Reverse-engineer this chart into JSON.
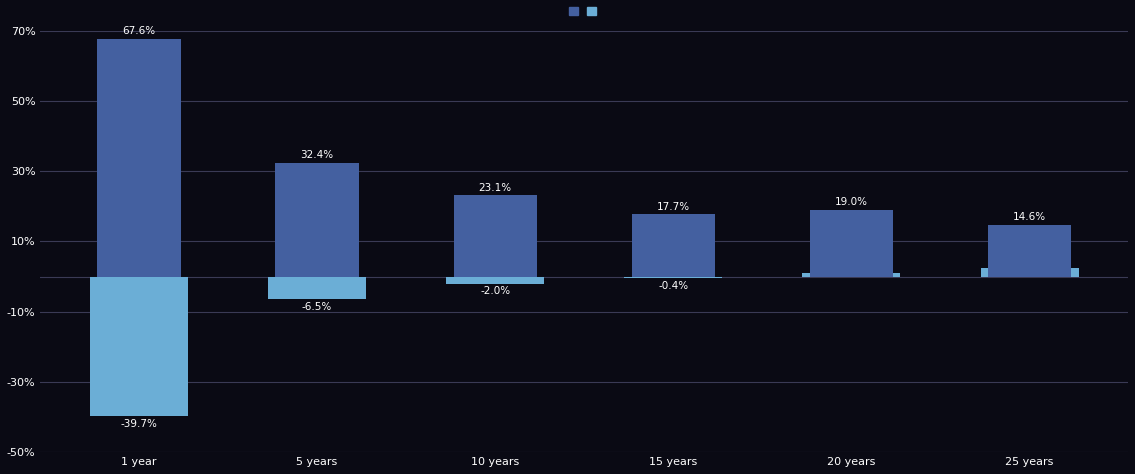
{
  "categories": [
    "1 year",
    "5 years",
    "10 years",
    "15 years",
    "20 years",
    "25 years"
  ],
  "best_values": [
    67.6,
    32.4,
    23.1,
    17.7,
    19.0,
    14.6
  ],
  "worst_values": [
    -39.7,
    -6.5,
    -2.0,
    -0.4,
    1.0,
    2.5
  ],
  "best_color": "#4460A0",
  "worst_color": "#6BAED6",
  "ylim": [
    -50,
    70
  ],
  "yticks": [
    -50,
    -30,
    -10,
    10,
    30,
    50,
    70
  ],
  "ytick_labels": [
    "-50%",
    "-30%",
    "-10%",
    "10%",
    "30%",
    "50%",
    "70%"
  ],
  "background_color": "#0A0A14",
  "plot_bg_color": "#0A0A14",
  "grid_color": "#3a3a55",
  "bar_width": 0.55,
  "label_fontsize": 7.5,
  "tick_fontsize": 8,
  "legend_fontsize": 8
}
